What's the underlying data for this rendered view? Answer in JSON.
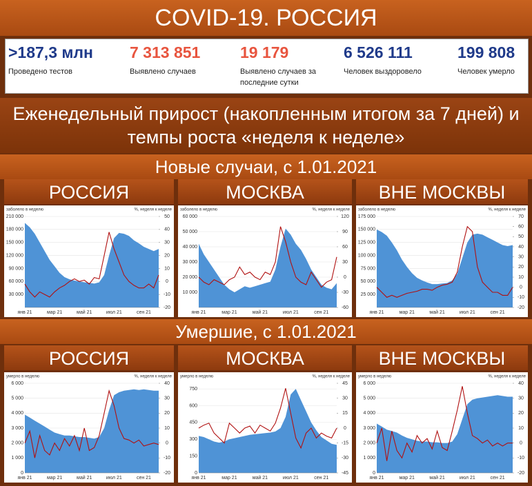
{
  "header": {
    "title": "COVID-19. РОССИЯ",
    "subtitle": "Еженедельный прирост (накопленным итогом за 7 дней) и темпы роста «неделя к неделе»"
  },
  "stats": [
    {
      "value": ">187,3 млн",
      "label": "Проведено тестов",
      "color": "#1f3a8a"
    },
    {
      "value": "7 313 851",
      "label": "Выявлено случаев",
      "color": "#e8553f"
    },
    {
      "value": "19 179",
      "label": "Выявлено случаев за последние сутки",
      "color": "#e8553f"
    },
    {
      "value": "6 526 111",
      "label": "Человек выздоровело",
      "color": "#1f3a8a"
    },
    {
      "value": "199 808",
      "label": "Человек умерло",
      "color": "#1f3a8a"
    }
  ],
  "sections": [
    "Новые случаи, с 1.01.2021",
    "Умершие, с 1.01.2021"
  ],
  "chart_data": [
    {
      "type": "combo",
      "title": "РОССИЯ",
      "y_label": "заболело в неделю",
      "y2_label": "%, неделя к неделе",
      "categories": [
        "янв 21",
        null,
        null,
        null,
        null,
        null,
        "мар 21",
        null,
        null,
        null,
        null,
        null,
        "май 21",
        null,
        null,
        null,
        null,
        null,
        "июл 21",
        null,
        null,
        null,
        null,
        null,
        "сен 21",
        null,
        null,
        null
      ],
      "ylim": [
        0,
        210000
      ],
      "yticks": [
        {
          "value": 30000,
          "label": "30 000"
        },
        {
          "value": 60000,
          "label": "60 000"
        },
        {
          "value": 90000,
          "label": "90 000"
        },
        {
          "value": 120000,
          "label": "120 000"
        },
        {
          "value": 150000,
          "label": "150 000"
        },
        {
          "value": 180000,
          "label": "180 000"
        },
        {
          "value": 210000,
          "label": "210 000"
        }
      ],
      "y2lim": [
        -20,
        50
      ],
      "y2ticks": [
        -20,
        -10,
        0,
        10,
        20,
        30,
        40,
        50
      ],
      "series": [
        {
          "type": "area",
          "color": "#4f93d6",
          "values": [
            195000,
            185000,
            170000,
            150000,
            130000,
            110000,
            95000,
            80000,
            70000,
            65000,
            62000,
            60000,
            58000,
            57000,
            55000,
            58000,
            75000,
            120000,
            160000,
            172000,
            170000,
            165000,
            155000,
            148000,
            140000,
            135000,
            130000,
            135000
          ]
        },
        {
          "type": "line",
          "axis": "y2",
          "color": "#b01010",
          "values": [
            -2,
            -8,
            -12,
            -8,
            -10,
            -12,
            -8,
            -5,
            -3,
            0,
            2,
            0,
            1,
            -2,
            3,
            2,
            20,
            38,
            25,
            15,
            5,
            0,
            -3,
            -5,
            -5,
            -2,
            -5,
            5
          ]
        }
      ]
    },
    {
      "type": "combo",
      "title": "МОСКВА",
      "y_label": "заболело в неделю",
      "y2_label": "%, неделя к неделе",
      "categories": [
        "янв 21",
        null,
        null,
        null,
        null,
        null,
        "мар 21",
        null,
        null,
        null,
        null,
        null,
        "май 21",
        null,
        null,
        null,
        null,
        null,
        "июл 21",
        null,
        null,
        null,
        null,
        null,
        "сен 21",
        null,
        null,
        null
      ],
      "ylim": [
        0,
        60000
      ],
      "yticks": [
        {
          "value": 10000,
          "label": "10 000"
        },
        {
          "value": 20000,
          "label": "20 000"
        },
        {
          "value": 30000,
          "label": "30 000"
        },
        {
          "value": 40000,
          "label": "40 000"
        },
        {
          "value": 50000,
          "label": "50 000"
        },
        {
          "value": 60000,
          "label": "60 000"
        }
      ],
      "y2lim": [
        -60,
        120
      ],
      "y2ticks": [
        -60,
        -30,
        0,
        30,
        60,
        90,
        120
      ],
      "series": [
        {
          "type": "area",
          "color": "#4f93d6",
          "values": [
            42000,
            35000,
            30000,
            25000,
            20000,
            15000,
            12000,
            10000,
            12000,
            14000,
            13000,
            14000,
            15000,
            16000,
            17000,
            25000,
            40000,
            52000,
            48000,
            42000,
            38000,
            32000,
            25000,
            20000,
            15000,
            13000,
            12000,
            16000
          ]
        },
        {
          "type": "line",
          "axis": "y2",
          "color": "#b01010",
          "values": [
            0,
            -10,
            -15,
            -5,
            -10,
            -15,
            -5,
            0,
            20,
            5,
            10,
            0,
            -5,
            10,
            5,
            30,
            100,
            70,
            30,
            0,
            -10,
            -15,
            10,
            -5,
            -20,
            -10,
            -5,
            40
          ]
        }
      ]
    },
    {
      "type": "combo",
      "title": "ВНЕ МОСКВЫ",
      "y_label": "заболело в неделю",
      "y2_label": "%, неделя к неделе",
      "categories": [
        "янв 21",
        null,
        null,
        null,
        null,
        null,
        "мар 21",
        null,
        null,
        null,
        null,
        null,
        "май 21",
        null,
        null,
        null,
        null,
        null,
        "июл 21",
        null,
        null,
        null,
        null,
        null,
        "сен 21",
        null,
        null,
        null
      ],
      "ylim": [
        0,
        175000
      ],
      "yticks": [
        {
          "value": 25000,
          "label": "25 000"
        },
        {
          "value": 50000,
          "label": "50 000"
        },
        {
          "value": 75000,
          "label": "75 000"
        },
        {
          "value": 100000,
          "label": "100 000"
        },
        {
          "value": 125000,
          "label": "125 000"
        },
        {
          "value": 150000,
          "label": "150 000"
        },
        {
          "value": 175000,
          "label": "175 000"
        }
      ],
      "y2lim": [
        -20,
        70
      ],
      "y2ticks": [
        -20,
        -10,
        0,
        10,
        20,
        30,
        40,
        50,
        60,
        70
      ],
      "series": [
        {
          "type": "area",
          "color": "#4f93d6",
          "values": [
            150000,
            145000,
            138000,
            125000,
            110000,
            92000,
            78000,
            66000,
            57000,
            52000,
            48000,
            45000,
            45000,
            46000,
            47000,
            52000,
            65000,
            95000,
            125000,
            140000,
            142000,
            140000,
            135000,
            130000,
            125000,
            120000,
            118000,
            120000
          ]
        },
        {
          "type": "line",
          "axis": "y2",
          "color": "#b01010",
          "values": [
            0,
            -5,
            -10,
            -8,
            -10,
            -8,
            -6,
            -5,
            -4,
            -2,
            -2,
            -3,
            0,
            2,
            3,
            5,
            15,
            40,
            60,
            55,
            20,
            5,
            0,
            -5,
            -5,
            -8,
            -8,
            0
          ]
        }
      ]
    },
    {
      "type": "combo",
      "title": "РОССИЯ",
      "y_label": "умерло в неделю",
      "y2_label": "%, неделя к неделе",
      "categories": [
        "янв 21",
        null,
        null,
        null,
        null,
        null,
        "мар 21",
        null,
        null,
        null,
        null,
        null,
        "май 21",
        null,
        null,
        null,
        null,
        null,
        "июл 21",
        null,
        null,
        null,
        null,
        null,
        "сен 21",
        null,
        null,
        null
      ],
      "ylim": [
        0,
        6000
      ],
      "yticks": [
        0,
        {
          "value": 1000,
          "label": "1 000"
        },
        {
          "value": 2000,
          "label": "2 000"
        },
        {
          "value": 3000,
          "label": "3 000"
        },
        {
          "value": 4000,
          "label": "4 000"
        },
        {
          "value": 5000,
          "label": "5 000"
        },
        {
          "value": 6000,
          "label": "6 000"
        }
      ],
      "y2lim": [
        -20,
        40
      ],
      "y2ticks": [
        -20,
        -10,
        0,
        10,
        20,
        30,
        40
      ],
      "series": [
        {
          "type": "area",
          "color": "#4f93d6",
          "values": [
            3900,
            3700,
            3500,
            3300,
            3100,
            2900,
            2700,
            2600,
            2500,
            2500,
            2450,
            2400,
            2400,
            2350,
            2300,
            2400,
            3000,
            4200,
            5200,
            5400,
            5500,
            5550,
            5600,
            5550,
            5600,
            5550,
            5500,
            5500
          ]
        },
        {
          "type": "line",
          "axis": "y2",
          "color": "#b01010",
          "values": [
            0,
            8,
            -10,
            5,
            -5,
            -8,
            0,
            -5,
            3,
            -2,
            5,
            -5,
            10,
            -5,
            -3,
            5,
            20,
            35,
            25,
            10,
            3,
            2,
            0,
            2,
            -2,
            -1,
            0,
            -1
          ]
        }
      ]
    },
    {
      "type": "combo",
      "title": "МОСКВА",
      "y_label": "умерло в неделю",
      "y2_label": "%, неделя к неделе",
      "categories": [
        "янв 21",
        null,
        null,
        null,
        null,
        null,
        "мар 21",
        null,
        null,
        null,
        null,
        null,
        "май 21",
        null,
        null,
        null,
        null,
        null,
        "июл 21",
        null,
        null,
        null,
        null,
        null,
        "сен 21",
        null,
        null,
        null
      ],
      "ylim": [
        0,
        800
      ],
      "yticks": [
        0,
        150,
        300,
        450,
        600,
        750
      ],
      "y2lim": [
        -45,
        45
      ],
      "y2ticks": [
        -45,
        -30,
        -15,
        0,
        15,
        30,
        45
      ],
      "series": [
        {
          "type": "area",
          "color": "#4f93d6",
          "values": [
            330,
            320,
            300,
            280,
            270,
            280,
            300,
            310,
            320,
            330,
            340,
            345,
            350,
            355,
            360,
            370,
            400,
            500,
            700,
            750,
            650,
            550,
            450,
            380,
            320,
            290,
            260,
            250
          ]
        },
        {
          "type": "line",
          "axis": "y2",
          "color": "#b01010",
          "values": [
            0,
            3,
            5,
            -5,
            -10,
            -15,
            5,
            0,
            -5,
            0,
            2,
            -5,
            3,
            0,
            -3,
            5,
            20,
            40,
            15,
            -10,
            -20,
            -5,
            0,
            -10,
            -5,
            -8,
            -10,
            0
          ]
        }
      ]
    },
    {
      "type": "combo",
      "title": "ВНЕ МОСКВЫ",
      "y_label": "умерло в неделю",
      "y2_label": "%, неделя к неделе",
      "categories": [
        "янв 21",
        null,
        null,
        null,
        null,
        null,
        "мар 21",
        null,
        null,
        null,
        null,
        null,
        "май 21",
        null,
        null,
        null,
        null,
        null,
        "июл 21",
        null,
        null,
        null,
        null,
        null,
        "сен 21",
        null,
        null,
        null
      ],
      "ylim": [
        0,
        6000
      ],
      "yticks": [
        0,
        {
          "value": 1000,
          "label": "1 000"
        },
        {
          "value": 2000,
          "label": "2 000"
        },
        {
          "value": 3000,
          "label": "3 000"
        },
        {
          "value": 4000,
          "label": "4 000"
        },
        {
          "value": 5000,
          "label": "5 000"
        },
        {
          "value": 6000,
          "label": "6 000"
        }
      ],
      "y2lim": [
        -20,
        40
      ],
      "y2ticks": [
        -20,
        -10,
        0,
        10,
        20,
        30,
        40
      ],
      "series": [
        {
          "type": "area",
          "color": "#4f93d6",
          "values": [
            3300,
            3100,
            2900,
            2800,
            2700,
            2500,
            2350,
            2250,
            2150,
            2100,
            2100,
            2050,
            2050,
            2000,
            2000,
            2100,
            2600,
            3600,
            4600,
            4900,
            5000,
            5050,
            5100,
            5150,
            5200,
            5150,
            5100,
            5100
          ]
        },
        {
          "type": "line",
          "axis": "y2",
          "color": "#b01010",
          "values": [
            0,
            10,
            -12,
            8,
            -5,
            -10,
            0,
            -6,
            5,
            0,
            3,
            -4,
            8,
            -3,
            -5,
            8,
            22,
            38,
            20,
            5,
            3,
            0,
            2,
            -2,
            0,
            -2,
            0,
            0
          ]
        }
      ]
    }
  ]
}
